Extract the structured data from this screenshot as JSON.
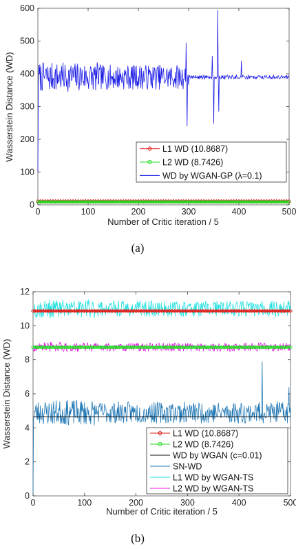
{
  "chart_data": [
    {
      "panel": "a",
      "type": "line",
      "caption": "(a)",
      "xlabel": "Number of Critic iteration / 5",
      "ylabel": "Wasserstein Distance (WD)",
      "xlim": [
        0,
        500
      ],
      "ylim": [
        0,
        600
      ],
      "xticks": [
        0,
        100,
        200,
        300,
        400,
        500
      ],
      "yticks": [
        0,
        100,
        200,
        300,
        400,
        500,
        600
      ],
      "legend_position": "lower-right",
      "series": [
        {
          "name": "L1 WD (10.8687)",
          "color": "#e0201b",
          "marker": "diamond",
          "style": "constant",
          "value": 10.8687
        },
        {
          "name": "L2 WD (8.7426)",
          "color": "#22dd22",
          "marker": "circle",
          "style": "constant",
          "value": 8.7426
        },
        {
          "name": "WD by WGAN-GP (λ=0.1)",
          "color": "#1a1ae6",
          "marker": "none",
          "style": "noisy",
          "start_value": 100,
          "baseline": 390,
          "noise_amplitude": 45,
          "spikes": [
            [
              295,
              495
            ],
            [
              297,
              240
            ],
            [
              347,
              455
            ],
            [
              350,
              248
            ],
            [
              358,
              595
            ],
            [
              360,
              285
            ],
            [
              405,
              440
            ]
          ]
        }
      ]
    },
    {
      "panel": "b",
      "type": "line",
      "caption": "(b)",
      "xlabel": "Number of Critic iteration / 5",
      "ylabel": "Wasserstein Distance (WD)",
      "xlim": [
        0,
        500
      ],
      "ylim": [
        0,
        12
      ],
      "xticks": [
        0,
        100,
        200,
        300,
        400,
        500
      ],
      "yticks": [
        0,
        2,
        4,
        6,
        8,
        10,
        12
      ],
      "legend_position": "lower-right",
      "series": [
        {
          "name": "L1 WD (10.8687)",
          "color": "#e0201b",
          "marker": "diamond",
          "style": "constant",
          "value": 10.8687
        },
        {
          "name": "L2 WD (8.7426)",
          "color": "#22dd22",
          "marker": "circle",
          "style": "constant",
          "value": 8.7426
        },
        {
          "name": "WD by WGAN (c=0.01)",
          "color": "#111111",
          "marker": "none",
          "style": "constant",
          "value": 4.65
        },
        {
          "name": "SN-WD",
          "color": "#1f77b4",
          "marker": "none",
          "style": "noisy",
          "start_value": 0.1,
          "baseline": 4.9,
          "noise_amplitude": 0.75,
          "spikes": [
            [
              445,
              7.9
            ],
            [
              497,
              6.4
            ]
          ]
        },
        {
          "name": "L1 WD by WGAN-TS",
          "color": "#22e0e0",
          "marker": "none",
          "style": "noisy",
          "start_value": 10.8,
          "baseline": 11.0,
          "noise_amplitude": 0.55,
          "spikes": []
        },
        {
          "name": "L2 WD by WGAN-TS",
          "color": "#e619e6",
          "marker": "none",
          "style": "noisy",
          "start_value": 8.7,
          "baseline": 8.75,
          "noise_amplitude": 0.3,
          "spikes": []
        }
      ]
    }
  ]
}
